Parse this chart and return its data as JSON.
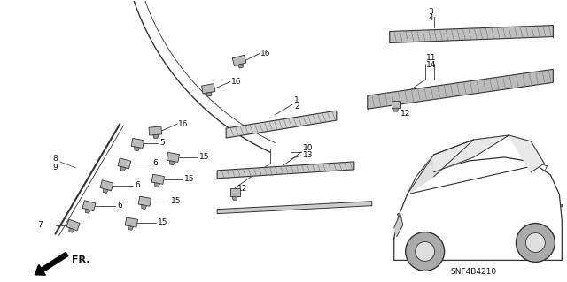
{
  "bg_color": "#ffffff",
  "fig_width": 6.4,
  "fig_height": 3.19,
  "diagram_code": "SNF4B4210",
  "fr_label": "FR.",
  "line_color": "#333333",
  "text_color": "#111111",
  "font_size": 6.5
}
